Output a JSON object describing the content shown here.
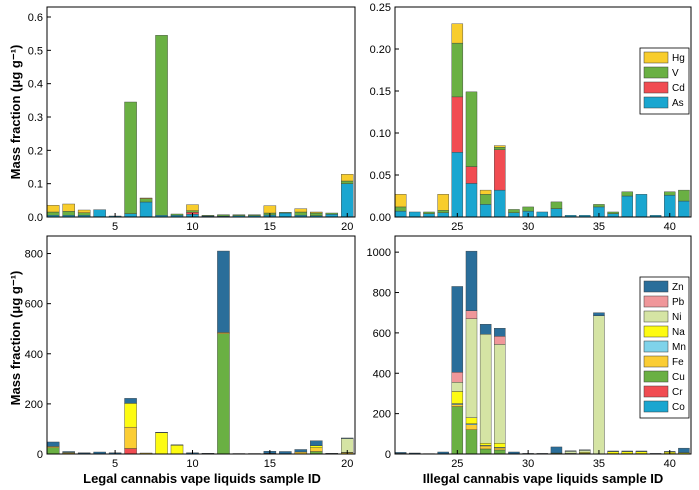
{
  "figure": {
    "ylabel_top": "Mass fraction (μg g⁻¹)",
    "ylabel_bottom": "Mass fraction (μg g⁻¹)",
    "xlabel_left": "Legal cannabis vape liquids sample ID",
    "xlabel_right": "Illegal cannabis vape liquids sample ID"
  },
  "colors": {
    "Hg": "#f8cd2c",
    "V": "#6ab043",
    "Cd": "#f14c52",
    "As": "#1aa6d0",
    "Zn": "#2a6e9a",
    "Pb": "#f0979a",
    "Ni": "#d5e4a4",
    "Na": "#fdfb12",
    "Mn": "#7fd3ea",
    "Fe": "#fbcd34",
    "Cu": "#6ab043",
    "Cr": "#f14c52",
    "Co": "#1aa6d0"
  },
  "chart_data": [
    {
      "id": "legal-trace",
      "type": "bar",
      "stacked": true,
      "title": "",
      "xlabel": "",
      "ylabel": "Mass fraction (μg g⁻¹)",
      "x": [
        1,
        2,
        3,
        4,
        5,
        6,
        7,
        8,
        9,
        10,
        11,
        12,
        13,
        14,
        15,
        16,
        17,
        18,
        19,
        20
      ],
      "xlim": [
        0.6,
        20.5
      ],
      "ylim": [
        0,
        0.63
      ],
      "xticks": [
        5,
        10,
        15,
        20
      ],
      "yticks": [
        0,
        0.1,
        0.2,
        0.3,
        0.4,
        0.5,
        0.6
      ],
      "ytick_labels": [
        "0.0",
        "0.1",
        "0.2",
        "0.3",
        "0.4",
        "0.5",
        "0.6"
      ],
      "legend": null,
      "series": [
        {
          "name": "As",
          "values": [
            0.005,
            0.005,
            0.005,
            0.022,
            0.003,
            0.01,
            0.045,
            0.005,
            0.005,
            0.008,
            0.003,
            0.003,
            0.004,
            0.004,
            0.006,
            0.012,
            0.005,
            0.004,
            0.008,
            0.1
          ]
        },
        {
          "name": "Cd",
          "values": [
            0,
            0,
            0,
            0,
            0,
            0,
            0,
            0,
            0,
            0.006,
            0,
            0,
            0,
            0,
            0,
            0,
            0,
            0,
            0,
            0
          ]
        },
        {
          "name": "V",
          "values": [
            0.01,
            0.012,
            0.008,
            0,
            0,
            0.335,
            0.01,
            0.54,
            0.004,
            0.005,
            0.002,
            0.004,
            0.003,
            0.003,
            0.006,
            0.002,
            0.01,
            0.008,
            0.004,
            0.008
          ]
        },
        {
          "name": "Hg",
          "values": [
            0.02,
            0.022,
            0.008,
            0,
            0,
            0,
            0.002,
            0,
            0,
            0.018,
            0,
            0,
            0,
            0,
            0.022,
            0,
            0.01,
            0.003,
            0,
            0.02
          ]
        }
      ]
    },
    {
      "id": "illegal-trace",
      "type": "bar",
      "stacked": true,
      "title": "",
      "xlabel": "",
      "ylabel": "",
      "x": [
        21,
        22,
        23,
        24,
        25,
        26,
        27,
        28,
        29,
        30,
        31,
        32,
        33,
        34,
        35,
        36,
        37,
        38,
        39,
        40,
        41
      ],
      "xlim": [
        20.6,
        41.5
      ],
      "ylim": [
        0,
        0.25
      ],
      "xticks": [
        25,
        30,
        35,
        40
      ],
      "yticks": [
        0,
        0.05,
        0.1,
        0.15,
        0.2,
        0.25
      ],
      "ytick_labels": [
        "0.00",
        "0.05",
        "0.10",
        "0.15",
        "0.20",
        "0.25"
      ],
      "legend": {
        "position": "right",
        "entries": [
          "Hg",
          "V",
          "Cd",
          "As"
        ]
      },
      "series": [
        {
          "name": "As",
          "values": [
            0.007,
            0.006,
            0.004,
            0.005,
            0.077,
            0.04,
            0.015,
            0.032,
            0.005,
            0.007,
            0.006,
            0.01,
            0.002,
            0.002,
            0.012,
            0.004,
            0.025,
            0.027,
            0.002,
            0.026,
            0.019
          ]
        },
        {
          "name": "Cd",
          "values": [
            0,
            0,
            0,
            0,
            0.066,
            0.02,
            0,
            0.048,
            0,
            0,
            0,
            0,
            0,
            0,
            0,
            0,
            0,
            0,
            0,
            0,
            0
          ]
        },
        {
          "name": "V",
          "values": [
            0.005,
            0,
            0.002,
            0.003,
            0.064,
            0.089,
            0.012,
            0.003,
            0.004,
            0.005,
            0,
            0.008,
            0,
            0,
            0.003,
            0.002,
            0.005,
            0,
            0,
            0.004,
            0.013
          ]
        },
        {
          "name": "Hg",
          "values": [
            0.015,
            0,
            0,
            0.019,
            0.023,
            0,
            0.005,
            0.002,
            0,
            0,
            0,
            0,
            0,
            0,
            0,
            0,
            0,
            0,
            0,
            0,
            0
          ]
        }
      ]
    },
    {
      "id": "legal-metals",
      "type": "bar",
      "stacked": true,
      "title": "",
      "xlabel": "Legal cannabis vape liquids sample ID",
      "ylabel": "Mass fraction (μg g⁻¹)",
      "x": [
        1,
        2,
        3,
        4,
        5,
        6,
        7,
        8,
        9,
        10,
        11,
        12,
        13,
        14,
        15,
        16,
        17,
        18,
        19,
        20
      ],
      "xlim": [
        0.6,
        20.5
      ],
      "ylim": [
        0,
        870
      ],
      "xticks": [
        5,
        10,
        15,
        20
      ],
      "yticks": [
        0,
        200,
        400,
        600,
        800
      ],
      "ytick_labels": [
        "0",
        "200",
        "400",
        "600",
        "800"
      ],
      "legend": null,
      "series": [
        {
          "name": "Co",
          "values": [
            0,
            0,
            0,
            0,
            0,
            0,
            0,
            0,
            0,
            0,
            0,
            0,
            0,
            0,
            0,
            0,
            0,
            0,
            0,
            0
          ]
        },
        {
          "name": "Cr",
          "values": [
            0,
            0,
            0,
            0,
            0,
            22,
            0,
            0,
            0,
            0,
            0,
            0,
            0,
            0,
            0,
            0,
            0,
            0,
            0,
            0
          ]
        },
        {
          "name": "Cu",
          "values": [
            25,
            2,
            0,
            0,
            0,
            0,
            0,
            0,
            0,
            0,
            0,
            480,
            0,
            0,
            0,
            0,
            0,
            10,
            0,
            0
          ]
        },
        {
          "name": "Fe",
          "values": [
            5,
            4,
            2,
            0,
            0,
            85,
            4,
            0,
            0,
            0,
            0,
            5,
            0,
            0,
            3,
            0,
            8,
            15,
            0,
            5
          ]
        },
        {
          "name": "Mn",
          "values": [
            0,
            0,
            0,
            0,
            0,
            0,
            0,
            0,
            0,
            0,
            0,
            0,
            0,
            0,
            0,
            0,
            0,
            0,
            0,
            0
          ]
        },
        {
          "name": "Na",
          "values": [
            0,
            0,
            0,
            0,
            0,
            95,
            0,
            85,
            35,
            0,
            0,
            0,
            0,
            0,
            0,
            0,
            0,
            8,
            0,
            2
          ]
        },
        {
          "name": "Ni",
          "values": [
            0,
            0,
            0,
            0,
            0,
            0,
            0,
            0,
            0,
            0,
            0,
            0,
            0,
            0,
            0,
            0,
            0,
            0,
            0,
            55
          ]
        },
        {
          "name": "Pb",
          "values": [
            0,
            0,
            0,
            0,
            0,
            0,
            0,
            0,
            0,
            0,
            0,
            0,
            0,
            0,
            0,
            0,
            0,
            0,
            0,
            0
          ]
        },
        {
          "name": "Zn",
          "values": [
            18,
            4,
            3,
            8,
            5,
            20,
            0,
            2,
            2,
            5,
            3,
            325,
            2,
            2,
            8,
            10,
            10,
            20,
            3,
            2
          ]
        }
      ]
    },
    {
      "id": "illegal-metals",
      "type": "bar",
      "stacked": true,
      "title": "",
      "xlabel": "Illegal cannabis vape liquids sample ID",
      "ylabel": "",
      "x": [
        21,
        22,
        23,
        24,
        25,
        26,
        27,
        28,
        29,
        30,
        31,
        32,
        33,
        34,
        35,
        36,
        37,
        38,
        39,
        40,
        41
      ],
      "xlim": [
        20.6,
        41.5
      ],
      "ylim": [
        0,
        1080
      ],
      "xticks": [
        25,
        30,
        35,
        40
      ],
      "yticks": [
        0,
        200,
        400,
        600,
        800,
        1000
      ],
      "ytick_labels": [
        "0",
        "200",
        "400",
        "600",
        "800",
        "1000"
      ],
      "legend": {
        "position": "right",
        "entries": [
          "Zn",
          "Pb",
          "Ni",
          "Na",
          "Mn",
          "Fe",
          "Cu",
          "Cr",
          "Co"
        ]
      },
      "series": [
        {
          "name": "Co",
          "values": [
            0,
            0,
            0,
            0,
            0,
            0,
            0,
            0,
            0,
            0,
            0,
            0,
            0,
            0,
            0,
            0,
            0,
            0,
            0,
            0,
            0
          ]
        },
        {
          "name": "Cr",
          "values": [
            0,
            0,
            0,
            0,
            0,
            0,
            0,
            0,
            0,
            0,
            0,
            0,
            0,
            0,
            0,
            0,
            0,
            0,
            0,
            0,
            0
          ]
        },
        {
          "name": "Cu",
          "values": [
            0,
            0,
            0,
            0,
            235,
            120,
            25,
            20,
            0,
            0,
            0,
            5,
            3,
            3,
            0,
            2,
            2,
            2,
            0,
            2,
            2
          ]
        },
        {
          "name": "Fe",
          "values": [
            3,
            2,
            0,
            0,
            10,
            25,
            15,
            10,
            0,
            0,
            0,
            0,
            0,
            0,
            0,
            0,
            0,
            0,
            0,
            0,
            0
          ]
        },
        {
          "name": "Mn",
          "values": [
            0,
            0,
            0,
            0,
            5,
            5,
            3,
            3,
            0,
            0,
            0,
            0,
            0,
            0,
            0,
            0,
            0,
            0,
            0,
            0,
            0
          ]
        },
        {
          "name": "Na",
          "values": [
            0,
            0,
            0,
            0,
            60,
            30,
            10,
            20,
            0,
            0,
            0,
            0,
            0,
            5,
            0,
            10,
            10,
            10,
            0,
            8,
            5
          ]
        },
        {
          "name": "Ni",
          "values": [
            0,
            0,
            0,
            0,
            45,
            490,
            540,
            490,
            0,
            0,
            0,
            0,
            10,
            10,
            685,
            0,
            0,
            0,
            0,
            0,
            0
          ]
        },
        {
          "name": "Pb",
          "values": [
            0,
            0,
            0,
            0,
            50,
            40,
            0,
            40,
            0,
            0,
            0,
            0,
            0,
            0,
            0,
            0,
            0,
            0,
            0,
            0,
            0
          ]
        },
        {
          "name": "Zn",
          "values": [
            5,
            3,
            2,
            10,
            425,
            295,
            50,
            40,
            10,
            3,
            3,
            30,
            3,
            3,
            15,
            3,
            3,
            3,
            3,
            3,
            22
          ]
        }
      ]
    }
  ]
}
